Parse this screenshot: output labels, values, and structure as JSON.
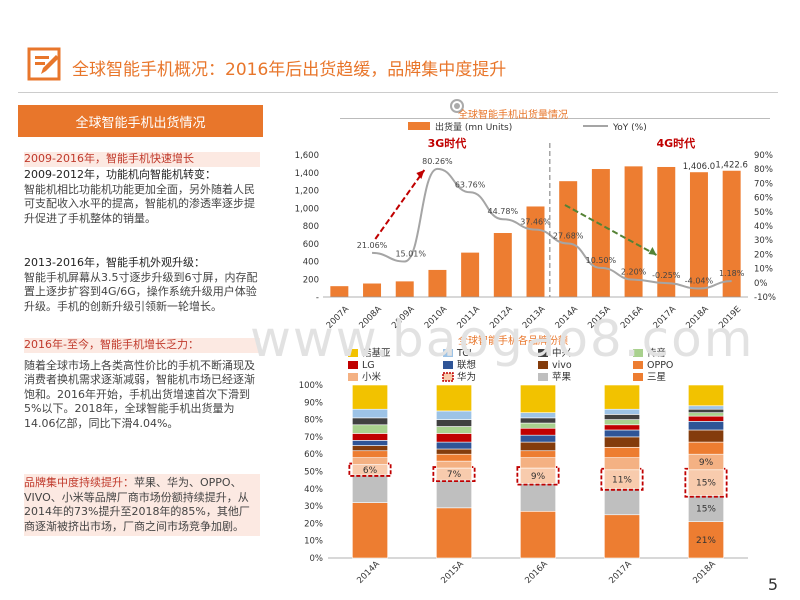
{
  "title": "全球智能手机概况：2016年后出货趋缓，品牌集中度提升",
  "left_header": "全球智能手机出货情况",
  "text_blocks": [
    {
      "heading": "2009-2016年，智能手机快速增长",
      "style": "red-pink"
    },
    {
      "heading": "2009-2012年，功能机向智能机转变：",
      "style": "black",
      "body": "智能机相比功能机功能更加全面，另外随着人民可支配收入水平的提高，智能机的渗透率逐步提升促进了手机整体的销量。"
    },
    {
      "heading": "2013-2016年，智能手机外观升级：",
      "style": "black",
      "body": "智能手机屏幕从3.5寸逐步升级到6寸屏，内存配置上逐步扩容到4G/6G，操作系统升级用户体验升级。手机的创新升级引领新一轮增长。"
    },
    {
      "heading": "2016年-至今，智能手机增长乏力：",
      "style": "red-pink",
      "body": "随着全球市场上各类高性价比的手机不断涌现及消费者换机需求逐渐减弱，智能机市场已经逐渐饱和。2016年开始，手机出货增速首次下滑到5%以下。2018年，全球智能手机出货量为14.06亿部，同比下滑4.04%。"
    },
    {
      "heading": "品牌集中度持续提升：",
      "style": "red-pink-inline",
      "body": "苹果、华为、OPPO、VIVO、小米等品牌厂商市场份额持续提升，从2014年的73%提升至2018年的85%，其他厂商逐渐被挤出市场，厂商之间市场竞争加剧。"
    }
  ],
  "page_number": "5",
  "watermark": "www.baogao8.com",
  "chart_data": [
    {
      "type": "bar",
      "title": "全球智能手机出货量情况",
      "categories": [
        "2007A",
        "2008A",
        "2009A",
        "2010A",
        "2011A",
        "2012A",
        "2013A",
        "2014A",
        "2015A",
        "2016A",
        "2017A",
        "2018A",
        "2019E"
      ],
      "series": [
        {
          "name": "出货量 (mn Units)",
          "type": "bar",
          "color": "#ED7D31",
          "values": [
            122,
            152,
            176,
            305,
            500,
            721,
            1020,
            1305,
            1442,
            1472,
            1465,
            1406,
            1422.6
          ]
        },
        {
          "name": "YoY (%)",
          "type": "line",
          "color": "#A5A5A5",
          "axis": "right",
          "values": [
            null,
            21.06,
            15.01,
            80.26,
            63.76,
            44.78,
            37.46,
            27.68,
            10.5,
            2.2,
            -0.25,
            -4.04,
            1.18
          ]
        }
      ],
      "data_labels": {
        "bar": {
          "11": "1,406.0",
          "12": "1,422.6"
        },
        "line": [
          "21.06%",
          "15.01%",
          "80.26%",
          "63.76%",
          "44.78%",
          "37.46%",
          "27.68%",
          "10.50%",
          "2.20%",
          "-0.25%",
          "-4.04%",
          "1.18%"
        ]
      },
      "ylim": [
        0,
        1600
      ],
      "yticks": [
        "-",
        "200",
        "400",
        "600",
        "800",
        "1,000",
        "1,200",
        "1,400",
        "1,600"
      ],
      "y2lim": [
        -10,
        90
      ],
      "y2ticks": [
        "-10%",
        "0%",
        "10%",
        "20%",
        "30%",
        "40%",
        "50%",
        "60%",
        "70%",
        "80%",
        "90%"
      ],
      "annotations": [
        "3G时代",
        "4G时代"
      ]
    },
    {
      "type": "stacked-bar",
      "title": "全球智能手机各品牌份额",
      "categories": [
        "2014A",
        "2015A",
        "2016A",
        "2017A",
        "2018A"
      ],
      "legend": [
        {
          "name": "诺基亚",
          "color": "#F2C200"
        },
        {
          "name": "TCL",
          "color": "#9DC3E6"
        },
        {
          "name": "中兴",
          "color": "#404040"
        },
        {
          "name": "传音",
          "color": "#A9D18E"
        },
        {
          "name": "LG",
          "color": "#C00000"
        },
        {
          "name": "联想",
          "color": "#2F5597"
        },
        {
          "name": "vivo",
          "color": "#843C0C"
        },
        {
          "name": "OPPO",
          "color": "#ED7D31"
        },
        {
          "name": "小米",
          "color": "#F4B183"
        },
        {
          "name": "华为",
          "color": "#F8CBAD"
        },
        {
          "name": "苹果",
          "color": "#BFBFBF"
        },
        {
          "name": "三星",
          "color": "#ED7D31"
        }
      ],
      "ylim": [
        0,
        100
      ],
      "yticks": [
        "0%",
        "10%",
        "20%",
        "30%",
        "40%",
        "50%",
        "60%",
        "70%",
        "80%",
        "90%",
        "100%"
      ],
      "labels": {
        "2014A": [
          "6%"
        ],
        "2015A": [
          "7%"
        ],
        "2016A": [
          "9%"
        ],
        "2017A": [
          "11%"
        ],
        "2018A": [
          "21%",
          "15%",
          "15%",
          "9%"
        ]
      },
      "stacks": {
        "2014A": [
          32,
          16,
          6,
          4,
          4,
          3,
          3,
          4,
          5,
          4,
          5,
          14
        ],
        "2015A": [
          29,
          16,
          7,
          4,
          4,
          3,
          4,
          5,
          4,
          4,
          5,
          15
        ],
        "2016A": [
          27,
          16,
          9,
          6,
          4,
          5,
          4,
          4,
          3,
          3,
          3,
          16
        ],
        "2017A": [
          25,
          15,
          11,
          7,
          6,
          6,
          4,
          3,
          3,
          3,
          3,
          14
        ],
        "2018A": [
          21,
          15,
          15,
          9,
          7,
          7,
          5,
          3,
          2,
          2,
          2,
          12
        ]
      },
      "stack_order": [
        "三星",
        "苹果",
        "华为",
        "小米",
        "OPPO",
        "vivo",
        "联想",
        "LG",
        "传音",
        "中兴",
        "TCL",
        "诺基亚"
      ]
    }
  ]
}
